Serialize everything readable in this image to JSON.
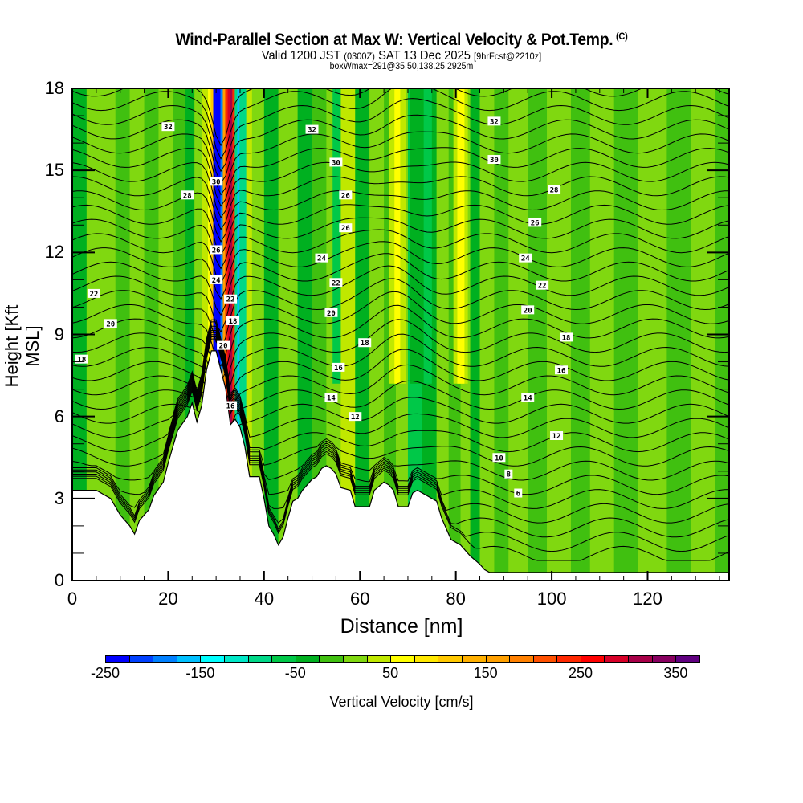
{
  "chart_data": {
    "type": "heatmap",
    "title": "Wind-Parallel Section at Max W: Vertical Velocity & Pot.Temp.",
    "title_suffix": "(C)",
    "subtitle_main": "Valid 1200 JST",
    "subtitle_utc": "(0300Z)",
    "subtitle_date": "SAT 13 Dec 2025",
    "subtitle_fcst": "[9hrFcst@2210z]",
    "subtitle2": "boxWmax=291@35.50,138.25,2925m",
    "xlabel": "Distance [nm]",
    "ylabel": "Height [Kft MSL]",
    "xlim": [
      0,
      137
    ],
    "ylim": [
      0,
      18
    ],
    "x_ticks": [
      "0",
      "20",
      "40",
      "60",
      "80",
      "100",
      "120"
    ],
    "x_tick_values": [
      0,
      20,
      40,
      60,
      80,
      100,
      120
    ],
    "y_ticks": [
      "0",
      "3",
      "6",
      "9",
      "12",
      "15",
      "18"
    ],
    "y_tick_values": [
      0,
      3,
      6,
      9,
      12,
      15,
      18
    ],
    "colorbar": {
      "title": "Vertical Velocity [cm/s]",
      "labels": [
        "-250",
        "-150",
        "-50",
        "50",
        "150",
        "250",
        "350"
      ],
      "label_values": [
        -250,
        -150,
        -50,
        50,
        150,
        250,
        350
      ],
      "min": -250,
      "step": 25,
      "colors": [
        "#0000ff",
        "#0040ff",
        "#0080ff",
        "#00c0ff",
        "#00ffff",
        "#00e8c8",
        "#00d888",
        "#00c848",
        "#00b020",
        "#40c010",
        "#80d810",
        "#c0e800",
        "#ffff00",
        "#ffe800",
        "#ffc800",
        "#ffb000",
        "#ffa000",
        "#ff8000",
        "#ff5000",
        "#ff2800",
        "#ff0000",
        "#d80028",
        "#a80048",
        "#880060",
        "#600080"
      ]
    },
    "terrain_kft": [
      [
        0,
        3.3
      ],
      [
        5,
        3.3
      ],
      [
        8,
        3.0
      ],
      [
        10,
        2.4
      ],
      [
        12,
        2.0
      ],
      [
        13,
        1.7
      ],
      [
        14,
        2.2
      ],
      [
        16,
        2.6
      ],
      [
        17,
        3.1
      ],
      [
        19,
        3.6
      ],
      [
        20,
        4.3
      ],
      [
        21,
        4.9
      ],
      [
        22,
        5.5
      ],
      [
        24,
        6.0
      ],
      [
        25,
        6.5
      ],
      [
        26,
        5.8
      ],
      [
        27,
        6.4
      ],
      [
        28,
        7.7
      ],
      [
        29,
        8.4
      ],
      [
        30,
        8.4
      ],
      [
        31,
        7.7
      ],
      [
        32,
        7.0
      ],
      [
        33,
        5.7
      ],
      [
        34,
        5.9
      ],
      [
        35,
        5.6
      ],
      [
        36,
        4.9
      ],
      [
        37,
        3.8
      ],
      [
        39,
        3.8
      ],
      [
        40,
        3.0
      ],
      [
        41,
        2.0
      ],
      [
        42,
        1.7
      ],
      [
        43,
        1.3
      ],
      [
        44,
        1.6
      ],
      [
        45,
        2.3
      ],
      [
        46,
        2.9
      ],
      [
        47,
        3.0
      ],
      [
        48,
        3.3
      ],
      [
        49,
        3.5
      ],
      [
        50,
        3.7
      ],
      [
        51,
        3.8
      ],
      [
        52,
        4.1
      ],
      [
        53,
        4.2
      ],
      [
        54,
        4.1
      ],
      [
        55,
        3.9
      ],
      [
        56,
        3.4
      ],
      [
        58,
        3.3
      ],
      [
        59,
        2.7
      ],
      [
        62,
        2.7
      ],
      [
        63,
        3.3
      ],
      [
        65,
        3.6
      ],
      [
        66,
        3.5
      ],
      [
        67,
        3.3
      ],
      [
        68,
        2.7
      ],
      [
        70,
        2.7
      ],
      [
        71,
        3.2
      ],
      [
        72,
        3.3
      ],
      [
        74,
        3.1
      ],
      [
        76,
        2.9
      ],
      [
        77,
        2.3
      ],
      [
        79,
        1.5
      ],
      [
        81,
        1.3
      ],
      [
        83,
        0.9
      ],
      [
        85,
        0.6
      ],
      [
        86,
        0.4
      ],
      [
        87,
        0.3
      ],
      [
        137,
        0.3
      ]
    ],
    "wbands": [
      {
        "x": 0,
        "w": 2
      },
      {
        "x": 3,
        "w": 1
      },
      {
        "x": 6,
        "w": 1
      },
      {
        "x": 9,
        "w": 0
      },
      {
        "x": 12,
        "w": 1
      },
      {
        "x": 15,
        "w": 0
      },
      {
        "x": 18,
        "w": 1
      },
      {
        "x": 21,
        "w": 0
      },
      {
        "x": 23.5,
        "w": 2
      },
      {
        "x": 25.5,
        "w": 1
      },
      {
        "x": 27,
        "w": 3
      },
      {
        "x": 28.3,
        "w": 5
      },
      {
        "x": 28.9,
        "w": 8
      },
      {
        "x": 29.4,
        "w": 12
      },
      {
        "x": 29.9,
        "w": 14
      },
      {
        "x": 30.4,
        "w": 13
      },
      {
        "x": 30.9,
        "w": 9
      },
      {
        "x": 31.4,
        "w": 16
      },
      {
        "x": 31.9,
        "w": 20
      },
      {
        "x": 32.4,
        "w": 22
      },
      {
        "x": 32.9,
        "w": 23
      },
      {
        "x": 33.4,
        "w": 20
      },
      {
        "x": 33.9,
        "w": 15
      },
      {
        "x": 34.4,
        "w": 11
      },
      {
        "x": 34.9,
        "w": 8
      },
      {
        "x": 35.5,
        "w": 5
      },
      {
        "x": 36.3,
        "w": 3
      },
      {
        "x": 37.5,
        "w": 1
      },
      {
        "x": 40,
        "w": 2
      },
      {
        "x": 43,
        "w": 1
      },
      {
        "x": 47,
        "w": 2
      },
      {
        "x": 50,
        "w": 0
      },
      {
        "x": 53,
        "w": 1
      },
      {
        "x": 56,
        "w": 3
      },
      {
        "x": 59,
        "w": 2
      },
      {
        "x": 62,
        "w": 1
      },
      {
        "x": 65,
        "w": 0
      },
      {
        "x": 67.5,
        "w": 1
      },
      {
        "x": 70,
        "w": 4
      },
      {
        "x": 73,
        "w": 2
      },
      {
        "x": 76,
        "w": 1
      },
      {
        "x": 78.5,
        "w": 0
      },
      {
        "x": 81,
        "w": 1
      },
      {
        "x": 83,
        "w": 2
      },
      {
        "x": 85,
        "w": 1
      },
      {
        "x": 88,
        "w": 0
      },
      {
        "x": 91,
        "w": 1
      },
      {
        "x": 95,
        "w": 0
      },
      {
        "x": 99,
        "w": 1
      },
      {
        "x": 104,
        "w": 0
      },
      {
        "x": 108,
        "w": 1
      },
      {
        "x": 113,
        "w": 0
      },
      {
        "x": 118,
        "w": 1
      },
      {
        "x": 124,
        "w": 0
      },
      {
        "x": 129,
        "w": 1
      },
      {
        "x": 134,
        "w": 0
      }
    ],
    "theta_contour_labels": [
      {
        "text": "32",
        "x": 20,
        "y": 16.6
      },
      {
        "text": "28",
        "x": 24,
        "y": 14.1
      },
      {
        "text": "22",
        "x": 4.5,
        "y": 10.5
      },
      {
        "text": "20",
        "x": 8,
        "y": 9.4
      },
      {
        "text": "18",
        "x": 2,
        "y": 8.1
      },
      {
        "text": "30",
        "x": 30,
        "y": 14.6
      },
      {
        "text": "26",
        "x": 30,
        "y": 12.1
      },
      {
        "text": "24",
        "x": 30,
        "y": 11.0
      },
      {
        "text": "22",
        "x": 33,
        "y": 10.3
      },
      {
        "text": "18",
        "x": 33.5,
        "y": 9.5
      },
      {
        "text": "20",
        "x": 31.5,
        "y": 8.6
      },
      {
        "text": "16",
        "x": 33,
        "y": 6.4
      },
      {
        "text": "32",
        "x": 50,
        "y": 16.5
      },
      {
        "text": "30",
        "x": 55,
        "y": 15.3
      },
      {
        "text": "26",
        "x": 57,
        "y": 14.1
      },
      {
        "text": "26",
        "x": 57,
        "y": 12.9
      },
      {
        "text": "24",
        "x": 52,
        "y": 11.8
      },
      {
        "text": "22",
        "x": 55,
        "y": 10.9
      },
      {
        "text": "20",
        "x": 54,
        "y": 9.8
      },
      {
        "text": "18",
        "x": 61,
        "y": 8.7
      },
      {
        "text": "16",
        "x": 55.5,
        "y": 7.8
      },
      {
        "text": "14",
        "x": 54,
        "y": 6.7
      },
      {
        "text": "12",
        "x": 59,
        "y": 6.0
      },
      {
        "text": "32",
        "x": 88,
        "y": 16.8
      },
      {
        "text": "30",
        "x": 88,
        "y": 15.4
      },
      {
        "text": "28",
        "x": 100.5,
        "y": 14.3
      },
      {
        "text": "26",
        "x": 96.5,
        "y": 13.1
      },
      {
        "text": "24",
        "x": 94.5,
        "y": 11.8
      },
      {
        "text": "22",
        "x": 98,
        "y": 10.8
      },
      {
        "text": "20",
        "x": 95,
        "y": 9.9
      },
      {
        "text": "18",
        "x": 103,
        "y": 8.9
      },
      {
        "text": "16",
        "x": 102,
        "y": 7.7
      },
      {
        "text": "14",
        "x": 95,
        "y": 6.7
      },
      {
        "text": "12",
        "x": 101,
        "y": 5.3
      },
      {
        "text": "10",
        "x": 89,
        "y": 4.5
      },
      {
        "text": "8",
        "x": 91,
        "y": 3.9
      },
      {
        "text": "6",
        "x": 93,
        "y": 3.2
      }
    ]
  }
}
